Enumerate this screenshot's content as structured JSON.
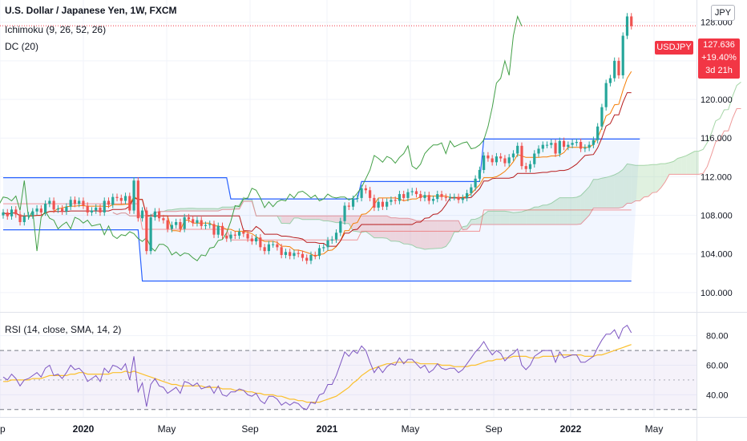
{
  "legend": {
    "title": "U.S. Dollar / Japanese Yen, 1W, FXCM",
    "ichimoku": "Ichimoku (9, 26, 52, 26)",
    "dc": "DC (20)",
    "rsi": "RSI (14, close, SMA, 14, 2)"
  },
  "currency_button": "JPY",
  "symbol_tag": "USDJPY",
  "price_badge": {
    "price": "127.636",
    "change": "+19.40%",
    "countdown": "3d 21h"
  },
  "colors": {
    "up": "#26a69a",
    "down": "#ef5350",
    "donchian": "#2962ff",
    "lagging": "#43a047",
    "kijun": "#b71c1c",
    "tenkan": "#f57c00",
    "rsi": "#7e57c2",
    "rsi_ma": "#fbc02d",
    "cloud_bull": "#a5d6a7",
    "cloud_bear": "#ef9a9a",
    "badge": "#f23645"
  },
  "chart_data": [
    {
      "type": "candlestick",
      "title": "U.S. Dollar / Japanese Yen, 1W, FXCM",
      "y_axis": {
        "ticks": [
          "100.000",
          "104.000",
          "108.000",
          "112.000",
          "116.000",
          "120.000",
          "124.000",
          "128.000"
        ],
        "ylim": [
          98.0,
          130.3
        ],
        "position": "right"
      },
      "x_axis": {
        "ticks": [
          "p",
          "2020",
          "May",
          "Sep",
          "2021",
          "May",
          "Sep",
          "2022",
          "May"
        ],
        "bold": [
          "2020",
          "2021",
          "2022"
        ]
      },
      "last_price": 127.636,
      "grid": true,
      "weekly_close": [
        108.3,
        107.9,
        108.6,
        108.1,
        107.3,
        107.9,
        108.0,
        108.4,
        108.7,
        108.3,
        109.2,
        109.5,
        108.6,
        108.7,
        108.4,
        108.9,
        109.6,
        109.2,
        109.5,
        109.0,
        108.3,
        108.5,
        108.8,
        108.3,
        109.5,
        109.1,
        109.9,
        109.8,
        109.5,
        110.0,
        108.5,
        111.6,
        107.7,
        108.5,
        104.3,
        107.8,
        108.4,
        107.7,
        107.5,
        106.6,
        107.0,
        107.3,
        106.6,
        107.8,
        107.6,
        107.2,
        107.5,
        106.9,
        107.0,
        107.1,
        106.0,
        106.9,
        105.9,
        105.6,
        106.0,
        105.9,
        106.3,
        106.1,
        105.6,
        105.3,
        105.7,
        104.7,
        104.3,
        105.0,
        105.0,
        104.7,
        103.9,
        104.2,
        103.8,
        104.1,
        104.0,
        103.6,
        103.3,
        103.9,
        103.8,
        104.6,
        104.7,
        105.4,
        105.5,
        106.2,
        107.4,
        109.0,
        108.9,
        109.7,
        109.8,
        110.8,
        110.6,
        109.8,
        108.8,
        109.4,
        108.9,
        109.4,
        109.6,
        109.5,
        110.2,
        109.8,
        110.4,
        110.5,
        110.2,
        109.8,
        110.1,
        109.5,
        109.7,
        110.2,
        109.9,
        109.8,
        109.9,
        109.9,
        109.6,
        109.8,
        110.3,
        110.9,
        111.8,
        112.7,
        114.2,
        113.9,
        113.5,
        114.1,
        113.9,
        113.4,
        114.0,
        114.4,
        115.2,
        113.1,
        112.8,
        113.3,
        114.4,
        114.9,
        115.3,
        115.3,
        115.5,
        114.4,
        115.7,
        115.1,
        115.3,
        115.5,
        115.6,
        114.9,
        115.0,
        115.3,
        115.8,
        117.2,
        119.2,
        121.7,
        122.2,
        124.0,
        122.5,
        126.6,
        128.6,
        127.6
      ],
      "donchian_upper": [
        111.9,
        111.9,
        111.9,
        111.9,
        111.9,
        111.9,
        111.9,
        111.9,
        111.9,
        111.9,
        111.9,
        111.9,
        111.9,
        111.9,
        111.9,
        111.9,
        111.9,
        111.9,
        111.9,
        111.9,
        111.9,
        111.9,
        111.9,
        111.9,
        111.9,
        111.9,
        111.9,
        111.9,
        111.9,
        111.9,
        111.9,
        111.9,
        111.9,
        111.9,
        111.9,
        111.9,
        111.9,
        111.9,
        111.9,
        111.9,
        111.9,
        111.9,
        111.9,
        111.9,
        111.9,
        111.9,
        111.9,
        111.9,
        111.9,
        111.9,
        111.9,
        111.9,
        111.9,
        111.9,
        109.7,
        109.7,
        109.7,
        109.7,
        109.7,
        109.7,
        109.7,
        109.7,
        109.7,
        109.7,
        109.7,
        109.7,
        109.7,
        109.7,
        109.7,
        109.7,
        109.7,
        109.7,
        109.7,
        109.7,
        109.7,
        109.7,
        109.7,
        109.7,
        109.7,
        109.7,
        109.7,
        109.7,
        109.7,
        109.7,
        109.7,
        111.5,
        111.5,
        111.5,
        111.5,
        111.5,
        111.5,
        111.5,
        111.5,
        111.5,
        111.5,
        111.5,
        111.5,
        111.5,
        111.5,
        111.5,
        111.5,
        111.5,
        111.5,
        111.5,
        111.5,
        111.5,
        111.5,
        111.5,
        111.5,
        111.5,
        111.5,
        111.5,
        111.5,
        111.5,
        115.9,
        115.9,
        115.9,
        115.9,
        115.9,
        115.9,
        115.9,
        115.9,
        115.9,
        115.9,
        115.9,
        115.9,
        115.9,
        115.9,
        115.9,
        115.9,
        115.9,
        115.9,
        115.9,
        115.9,
        115.9,
        115.9,
        115.9,
        115.9,
        115.9,
        115.9,
        115.9,
        115.9,
        115.9,
        115.9,
        115.9,
        115.9,
        115.9,
        115.9,
        115.9,
        115.9,
        115.9,
        115.9
      ],
      "donchian_lower": [
        106.5,
        106.5,
        106.5,
        106.5,
        106.5,
        106.5,
        106.5,
        106.5,
        106.5,
        106.5,
        106.5,
        106.5,
        106.5,
        106.5,
        106.5,
        106.5,
        106.5,
        106.5,
        106.5,
        106.5,
        106.5,
        106.5,
        106.5,
        106.5,
        106.5,
        106.5,
        106.5,
        106.5,
        106.5,
        106.5,
        106.5,
        106.5,
        106.5,
        101.2,
        101.2,
        101.2,
        101.2,
        101.2,
        101.2,
        101.2,
        101.2,
        101.2,
        101.2,
        101.2,
        101.2,
        101.2,
        101.2,
        101.2,
        101.2,
        101.2,
        101.2,
        101.2,
        101.2,
        101.2,
        101.2,
        101.2,
        101.2,
        101.2,
        101.2,
        101.2,
        101.2,
        101.2,
        101.2,
        101.2,
        101.2,
        101.2,
        101.2,
        101.2,
        101.2,
        101.2,
        101.2,
        101.2,
        101.2,
        101.2,
        101.2,
        101.2,
        101.2,
        101.2,
        101.2,
        101.2,
        101.2,
        101.2,
        101.2,
        101.2,
        101.2,
        101.2,
        101.2,
        101.2,
        101.2,
        101.2,
        101.2,
        101.2,
        101.2,
        101.2,
        101.2,
        101.2,
        101.2,
        101.2,
        101.2,
        101.2,
        101.2,
        101.2,
        101.2,
        101.2,
        101.2,
        101.2,
        101.2,
        101.2,
        101.2,
        101.2,
        101.2,
        101.2,
        101.2,
        101.2,
        101.2,
        101.2,
        101.2,
        101.2,
        101.2,
        101.2,
        101.2,
        101.2,
        101.2,
        101.2,
        101.2,
        101.2,
        101.2,
        101.2,
        101.2,
        101.2,
        101.2,
        101.2,
        101.2,
        101.2,
        101.2,
        101.2,
        101.2,
        101.2,
        101.2,
        101.2,
        101.2,
        101.2,
        101.2,
        101.2,
        101.2,
        101.2,
        101.2,
        101.2,
        101.2,
        101.2
      ]
    },
    {
      "type": "line",
      "title": "RSI (14, close, SMA, 14, 2)",
      "y_axis": {
        "ticks": [
          "40.00",
          "60.00",
          "80.00"
        ],
        "ylim": [
          25,
          95
        ],
        "position": "right"
      },
      "bands": {
        "upper": 70,
        "middle": 50,
        "lower": 30
      },
      "series": [
        {
          "values": [
            52,
            50,
            54,
            51,
            46,
            50,
            51,
            53,
            55,
            52,
            58,
            60,
            53,
            54,
            51,
            55,
            60,
            57,
            58,
            55,
            49,
            51,
            53,
            49,
            58,
            55,
            60,
            59,
            57,
            61,
            50,
            66,
            42,
            48,
            32,
            47,
            51,
            46,
            45,
            41,
            43,
            45,
            41,
            49,
            48,
            46,
            48,
            44,
            45,
            46,
            41,
            46,
            40,
            39,
            42,
            42,
            44,
            43,
            40,
            39,
            41,
            36,
            34,
            39,
            39,
            37,
            33,
            35,
            33,
            35,
            34,
            31,
            30,
            35,
            34,
            40,
            41,
            47,
            47,
            53,
            61,
            69,
            66,
            70,
            68,
            73,
            70,
            62,
            55,
            59,
            55,
            59,
            61,
            60,
            65,
            61,
            64,
            64,
            61,
            58,
            60,
            55,
            57,
            61,
            58,
            57,
            58,
            58,
            55,
            57,
            61,
            65,
            69,
            72,
            76,
            71,
            67,
            70,
            68,
            63,
            66,
            68,
            71,
            60,
            57,
            60,
            66,
            68,
            70,
            70,
            70,
            62,
            69,
            65,
            66,
            67,
            67,
            62,
            62,
            64,
            66,
            72,
            77,
            81,
            81,
            84,
            78,
            85,
            87,
            82
          ]
        },
        {
          "values": [
            49,
            49,
            50,
            50,
            50,
            50,
            50,
            51,
            51,
            51,
            52,
            53,
            53,
            53,
            53,
            53,
            54,
            54,
            55,
            55,
            54,
            54,
            54,
            54,
            54,
            54,
            55,
            55,
            55,
            56,
            55,
            56,
            55,
            54,
            53,
            52,
            51,
            50,
            49,
            48,
            47,
            47,
            46,
            46,
            46,
            46,
            46,
            46,
            45,
            45,
            45,
            45,
            44,
            44,
            44,
            43,
            43,
            43,
            42,
            42,
            41,
            41,
            40,
            40,
            40,
            39,
            39,
            38,
            37,
            37,
            36,
            36,
            35,
            35,
            35,
            35,
            36,
            37,
            38,
            39,
            41,
            43,
            45,
            48,
            50,
            53,
            55,
            57,
            58,
            59,
            60,
            61,
            61,
            62,
            62,
            62,
            62,
            62,
            62,
            61,
            61,
            61,
            61,
            61,
            60,
            60,
            60,
            59,
            59,
            59,
            59,
            60,
            60,
            61,
            62,
            63,
            63,
            64,
            64,
            65,
            65,
            66,
            66,
            66,
            66,
            65,
            65,
            65,
            66,
            66,
            66,
            66,
            67,
            67,
            67,
            67,
            67,
            67,
            66,
            66,
            66,
            67,
            67,
            68,
            69,
            70,
            71,
            72,
            73,
            74
          ]
        }
      ]
    }
  ]
}
